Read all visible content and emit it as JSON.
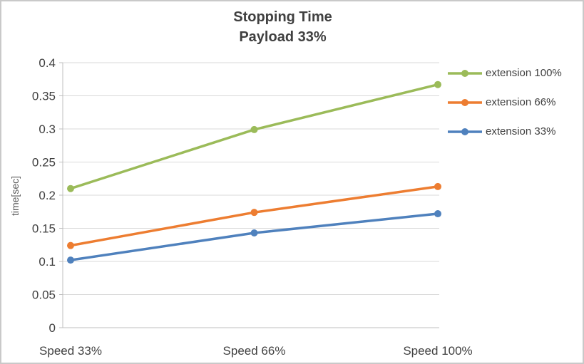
{
  "chart_data": {
    "type": "line",
    "title": "Stopping Time",
    "subtitle": "Payload 33%",
    "ylabel": "time[sec]",
    "categories": [
      "Speed 33%",
      "Speed 66%",
      "Speed 100%"
    ],
    "series": [
      {
        "name": "extension 100%",
        "color": "#9bbb59",
        "values": [
          0.21,
          0.299,
          0.367
        ]
      },
      {
        "name": "extension 66%",
        "color": "#ed7d31",
        "values": [
          0.124,
          0.174,
          0.213
        ]
      },
      {
        "name": "extension 33%",
        "color": "#4f81bd",
        "values": [
          0.102,
          0.143,
          0.172
        ]
      }
    ],
    "ylim": [
      0,
      0.4
    ],
    "ytick_step": 0.05,
    "grid": true,
    "legend_position": "right",
    "colors": {
      "text": "#404040",
      "gridline": "#d9d9d9",
      "axis": "#bfbfbf"
    }
  }
}
